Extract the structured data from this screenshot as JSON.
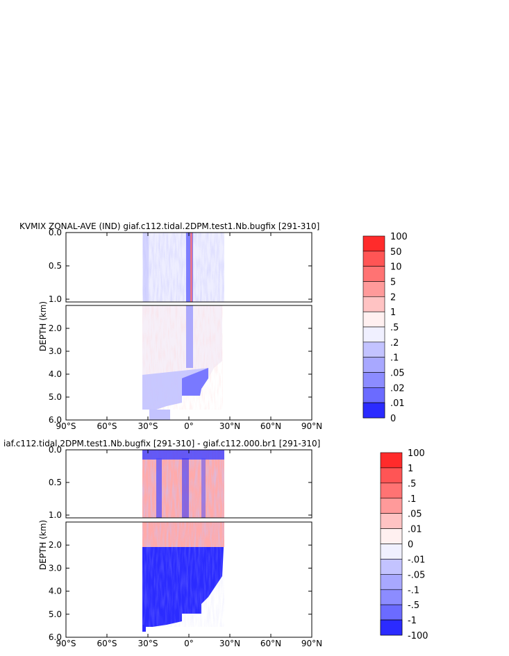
{
  "chart_data": [
    {
      "type": "heatmap",
      "title": "KVMIX ZONAL-AVE (IND) giaf.c112.tidal.2DPM.test1.Nb.bugfix [291-310]",
      "ylabel": "DEPTH (km)",
      "x_ticks": [
        "90°S",
        "60°S",
        "30°S",
        "0°",
        "30°N",
        "60°N",
        "90°N"
      ],
      "y_ticks_upper": [
        "0.0",
        "0.5",
        "1.0"
      ],
      "y_ticks_lower": [
        "2.0",
        "3.0",
        "4.0",
        "5.0",
        "6.0"
      ],
      "xlim": [
        -90,
        90
      ],
      "ylim": [
        0,
        6
      ],
      "colorbar_labels": [
        "100",
        "50",
        "10",
        "5",
        "2",
        "1",
        ".5",
        ".2",
        ".1",
        ".05",
        ".02",
        ".01",
        "0"
      ],
      "colorbar_colors": [
        "#ff2b2b",
        "#ff5555",
        "#ff7373",
        "#ff9a9a",
        "#ffc3c3",
        "#fff0f0",
        "#f0f0ff",
        "#c3c3ff",
        "#a8a8ff",
        "#8c8cff",
        "#6b6bff",
        "#4a4aff",
        "#2b2bff"
      ]
    },
    {
      "type": "heatmap",
      "title": "iaf.c112.tidal.2DPM.test1.Nb.bugfix [291-310] - giaf.c112.000.br1 [291-310]",
      "ylabel": "DEPTH (km)",
      "x_ticks": [
        "90°S",
        "60°S",
        "30°S",
        "0°",
        "30°N",
        "60°N",
        "90°N"
      ],
      "y_ticks_upper": [
        "0.0",
        "0.5",
        "1.0"
      ],
      "y_ticks_lower": [
        "2.0",
        "3.0",
        "4.0",
        "5.0",
        "6.0"
      ],
      "xlim": [
        -90,
        90
      ],
      "ylim": [
        0,
        6
      ],
      "colorbar_labels": [
        "100",
        "1",
        ".5",
        ".1",
        ".05",
        ".01",
        "0",
        "-.01",
        "-.05",
        "-.1",
        "-.5",
        "-1",
        "-100"
      ],
      "colorbar_colors": [
        "#ff2b2b",
        "#ff5555",
        "#ff7373",
        "#ff9a9a",
        "#ffc3c3",
        "#fff0f0",
        "#f0f0ff",
        "#c3c3ff",
        "#a8a8ff",
        "#8c8cff",
        "#6b6bff",
        "#4a4aff",
        "#2b2bff"
      ]
    }
  ]
}
